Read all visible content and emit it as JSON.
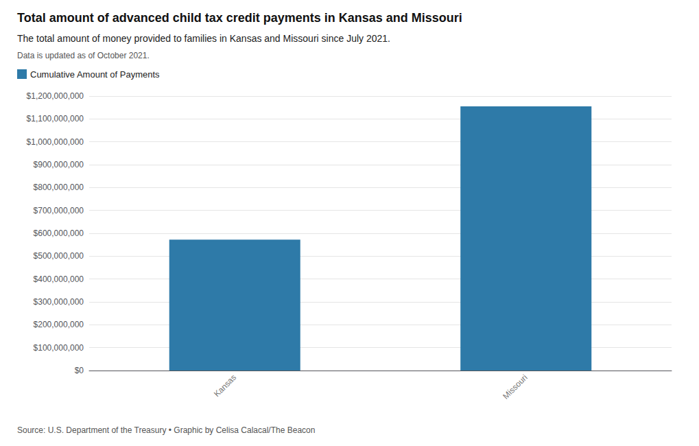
{
  "chart_data": {
    "type": "bar",
    "title": "Total amount of advanced child tax credit payments in Kansas and Missouri",
    "subtitle": "The total amount of money provided to families in Kansas and Missouri since July 2021.",
    "annotations": [
      "Data is updated as of October 2021.",
      "Source: U.S. Department of the Treasury • Graphic by Celisa Calacal/The Beacon"
    ],
    "categories": [
      "Kansas",
      "Missouri"
    ],
    "series": [
      {
        "name": "Cumulative Amount of Payments",
        "color": "#2e7aa8",
        "values": [
          572000000,
          1155000000
        ]
      }
    ],
    "ylim": [
      0,
      1200000000
    ],
    "yticks": [
      {
        "value": 0,
        "label": "$0"
      },
      {
        "value": 100000000,
        "label": "$100,000,000"
      },
      {
        "value": 200000000,
        "label": "$200,000,000"
      },
      {
        "value": 300000000,
        "label": "$300,000,000"
      },
      {
        "value": 400000000,
        "label": "$400,000,000"
      },
      {
        "value": 500000000,
        "label": "$500,000,000"
      },
      {
        "value": 600000000,
        "label": "$600,000,000"
      },
      {
        "value": 700000000,
        "label": "$700,000,000"
      },
      {
        "value": 800000000,
        "label": "$800,000,000"
      },
      {
        "value": 900000000,
        "label": "$900,000,000"
      },
      {
        "value": 1000000000,
        "label": "$1,000,000,000"
      },
      {
        "value": 1100000000,
        "label": "$1,100,000,000"
      },
      {
        "value": 1200000000,
        "label": "$1,200,000,000"
      }
    ],
    "grid": true,
    "legend": "upper left"
  }
}
